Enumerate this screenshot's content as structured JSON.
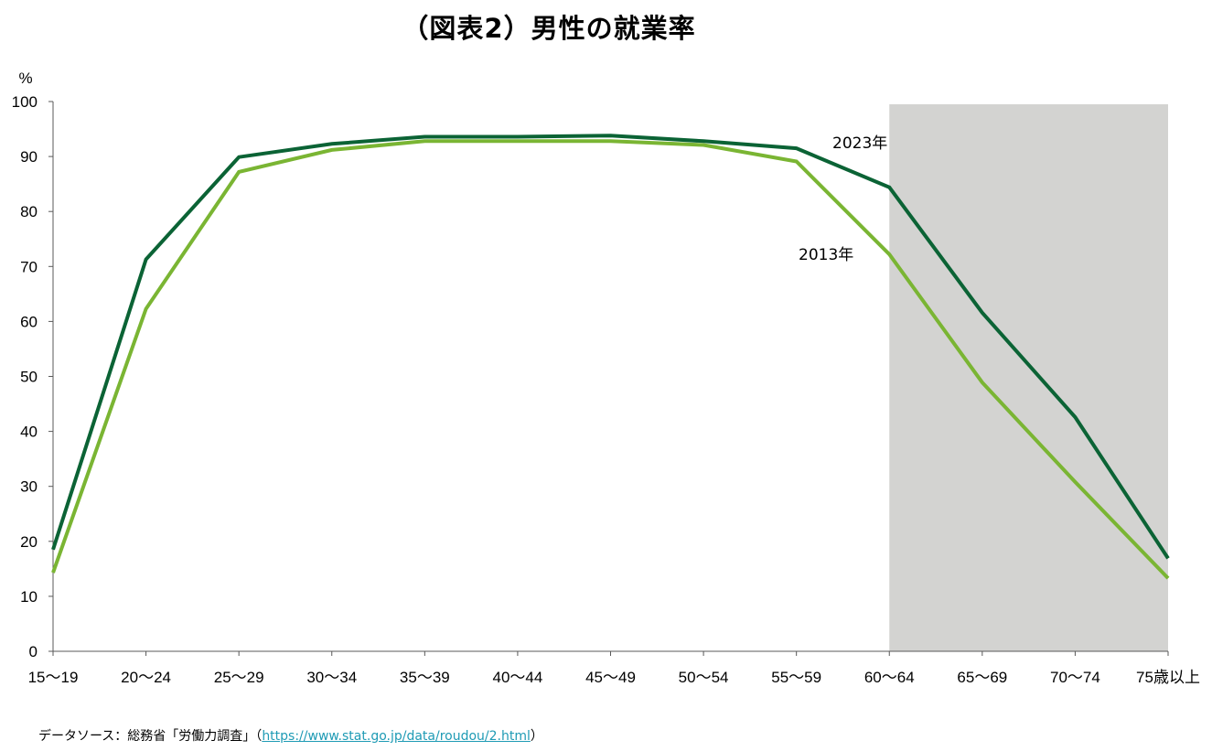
{
  "chart_data": {
    "type": "line",
    "title": "（図表2）男性の就業率",
    "ylabel": "%",
    "xlabel": "",
    "ylim": [
      0,
      100
    ],
    "yticks": [
      0,
      10,
      20,
      30,
      40,
      50,
      60,
      70,
      80,
      90,
      100
    ],
    "grid": false,
    "legend": "none",
    "categories": [
      "15〜19",
      "20〜24",
      "25〜29",
      "30〜34",
      "35〜39",
      "40〜44",
      "45〜49",
      "50〜54",
      "55〜59",
      "60〜64",
      "65〜69",
      "70〜74",
      "75歳以上"
    ],
    "series": [
      {
        "name": "2023年",
        "color": "#0b6335",
        "values": [
          18.5,
          71.3,
          89.9,
          92.3,
          93.6,
          93.6,
          93.8,
          92.8,
          91.5,
          84.4,
          61.6,
          42.6,
          16.9
        ]
      },
      {
        "name": "2013年",
        "color": "#7ab533",
        "values": [
          14.3,
          62.3,
          87.2,
          91.2,
          92.8,
          92.8,
          92.8,
          92.1,
          89.1,
          72.2,
          48.9,
          30.8,
          13.3
        ]
      }
    ],
    "shaded_range": {
      "from_category": "60〜64",
      "to_category": "75歳以上",
      "color": "#d3d3d1"
    },
    "axis_color": "#595959"
  },
  "source": {
    "prefix": "データソース：総務省「労働力調査」（",
    "link": "https://www.stat.go.jp/data/roudou/2.html",
    "suffix": "）"
  }
}
